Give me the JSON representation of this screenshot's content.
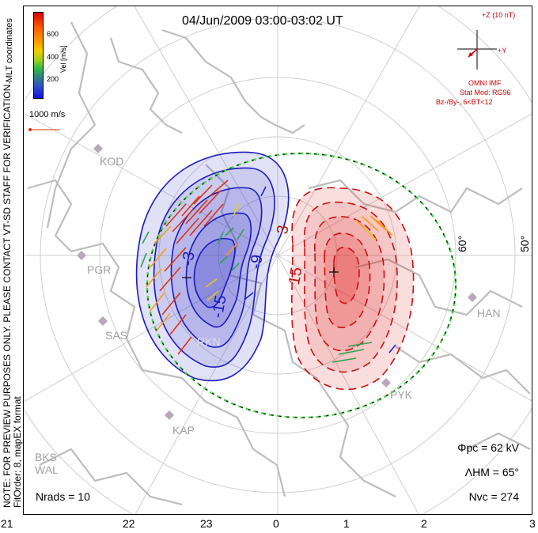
{
  "title": "04/Jun/2009 03:00-03:02 UT",
  "side_note": {
    "line1": "NOTE: FOR PREVIEW PURPOSES ONLY. PLEASE CONTACT VT-SD STAFF FOR VERIFICATION.",
    "line2": "FitOrder: 8, mapEX format"
  },
  "coords_label": "MLT coordinates",
  "colorbar": {
    "title": "Vel [m/s]",
    "ticks": [
      "600",
      "400",
      "200"
    ]
  },
  "vector_scale_label": "1000 m/s",
  "imf": {
    "z_label": "+Z (10 nT)",
    "y_label": "+Y",
    "source": "OMNI IMF",
    "model": "Stat Mod: RG96",
    "condition": "Bz-/By-, 6<BT<12"
  },
  "stats": {
    "phi_pc": "Φpc = 62 kV",
    "lambda_hm": "ΛHM = 65°",
    "n_vc": "Nvc = 274",
    "n_rads": "Nrads = 10"
  },
  "mlt_ticks": [
    "21",
    "22",
    "23",
    "0",
    "1",
    "2",
    "3"
  ],
  "lat_labels": [
    "60°",
    "50°"
  ],
  "stations": [
    "KOD",
    "PGR",
    "SAS",
    "RKN",
    "KAP",
    "BKS",
    "WAL",
    "HAN",
    "PYK"
  ],
  "contour_labels": [
    "-3",
    "-9",
    "-15",
    "3",
    "15"
  ],
  "colors": {
    "negative_cell": "#3838c8",
    "positive_cell": "#e02020",
    "boundary": "#50d050",
    "imf_text": "#d00000",
    "grid": "#c8c8c8",
    "coast": "#bdbdbd"
  }
}
